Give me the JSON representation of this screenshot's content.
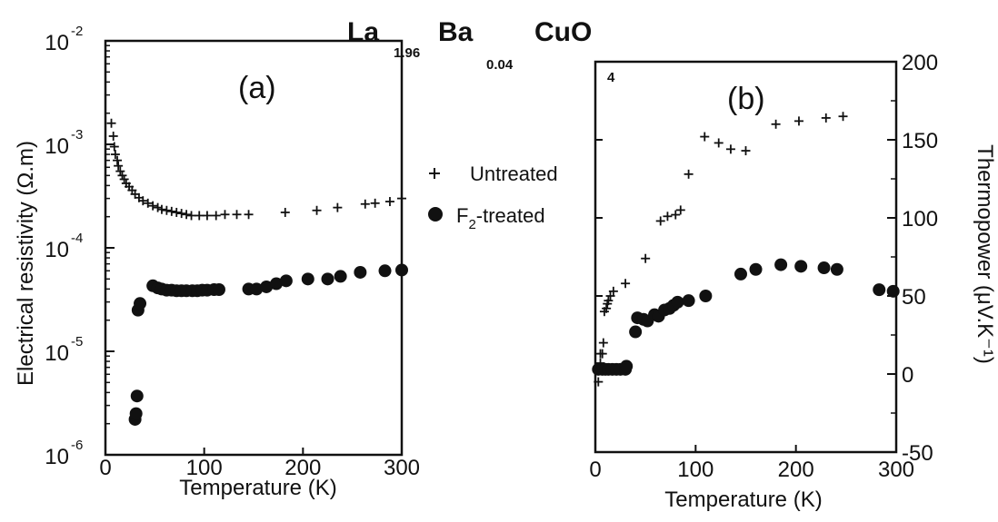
{
  "title": {
    "parts": [
      "La",
      "1.96",
      "Ba",
      "0.04",
      "CuO",
      "4"
    ]
  },
  "legend": {
    "untreated": "Untreated",
    "treated_main": "F",
    "treated_sub": "2",
    "treated_rest": "-treated"
  },
  "colors": {
    "ink": "#111111"
  },
  "chart_data": [
    {
      "type": "scatter",
      "panel_label": "(a)",
      "xlabel": "Temperature (K)",
      "ylabel": "Electrical resistivity (Ω.m)",
      "xlim": [
        0,
        300
      ],
      "ylim": [
        1e-06,
        0.01
      ],
      "log_y": true,
      "x_ticks": [
        "0",
        "100",
        "200",
        "300"
      ],
      "y_tick_bases": [
        "10",
        "10",
        "10",
        "10",
        "10"
      ],
      "y_tick_exps": [
        "-6",
        "-5",
        "-4",
        "-3",
        "-2"
      ],
      "series": [
        {
          "name": "Untreated",
          "marker": "plus",
          "points": [
            [
              6,
              0.0016
            ],
            [
              8,
              0.0012
            ],
            [
              9,
              0.00095
            ],
            [
              10,
              0.0008
            ],
            [
              12,
              0.0007
            ],
            [
              13,
              0.00062
            ],
            [
              15,
              0.00055
            ],
            [
              17,
              0.0005
            ],
            [
              19,
              0.00046
            ],
            [
              21,
              0.00042
            ],
            [
              24,
              0.00039
            ],
            [
              27,
              0.00036
            ],
            [
              30,
              0.00033
            ],
            [
              34,
              0.000305
            ],
            [
              38,
              0.000285
            ],
            [
              43,
              0.00027
            ],
            [
              48,
              0.000255
            ],
            [
              53,
              0.000245
            ],
            [
              57,
              0.000235
            ],
            [
              62,
              0.00023
            ],
            [
              67,
              0.000225
            ],
            [
              72,
              0.00022
            ],
            [
              77,
              0.000215
            ],
            [
              82,
              0.00021
            ],
            [
              87,
              0.000205
            ],
            [
              95,
              0.000205
            ],
            [
              103,
              0.000205
            ],
            [
              112,
              0.000205
            ],
            [
              121,
              0.00021
            ],
            [
              133,
              0.00021
            ],
            [
              145,
              0.00021
            ],
            [
              182,
              0.00022
            ],
            [
              214,
              0.00023
            ],
            [
              235,
              0.000245
            ],
            [
              263,
              0.000265
            ],
            [
              273,
              0.00027
            ],
            [
              288,
              0.00028
            ],
            [
              300,
              0.0003
            ]
          ]
        },
        {
          "name": "F2-treated",
          "marker": "dot",
          "points": [
            [
              30,
              2.2e-06
            ],
            [
              31,
              2.5e-06
            ],
            [
              32,
              3.7e-06
            ],
            [
              33,
              2.5e-05
            ],
            [
              35,
              2.9e-05
            ],
            [
              48,
              4.3e-05
            ],
            [
              53,
              4.1e-05
            ],
            [
              57,
              4e-05
            ],
            [
              62,
              3.9e-05
            ],
            [
              67,
              3.9e-05
            ],
            [
              72,
              3.85e-05
            ],
            [
              77,
              3.85e-05
            ],
            [
              82,
              3.85e-05
            ],
            [
              88,
              3.85e-05
            ],
            [
              93,
              3.85e-05
            ],
            [
              98,
              3.9e-05
            ],
            [
              103,
              3.9e-05
            ],
            [
              110,
              3.95e-05
            ],
            [
              115,
              3.95e-05
            ],
            [
              145,
              4e-05
            ],
            [
              153,
              4e-05
            ],
            [
              163,
              4.2e-05
            ],
            [
              173,
              4.5e-05
            ],
            [
              183,
              4.8e-05
            ],
            [
              205,
              5e-05
            ],
            [
              225,
              5e-05
            ],
            [
              238,
              5.3e-05
            ],
            [
              258,
              5.8e-05
            ],
            [
              283,
              6e-05
            ],
            [
              300,
              6.1e-05
            ]
          ]
        }
      ]
    },
    {
      "type": "scatter",
      "panel_label": "(b)",
      "xlabel": "Temperature (K)",
      "ylabel": "Thermopower (μV.K⁻¹)",
      "xlim": [
        0,
        300
      ],
      "ylim": [
        -50,
        200
      ],
      "x_ticks": [
        "0",
        "100",
        "200",
        "300"
      ],
      "y_ticks": [
        "-50",
        "0",
        "50",
        "100",
        "150",
        "200"
      ],
      "series": [
        {
          "name": "Untreated",
          "marker": "plus",
          "points": [
            [
              3,
              -5
            ],
            [
              5,
              7
            ],
            [
              5,
              13
            ],
            [
              7,
              13
            ],
            [
              8,
              20
            ],
            [
              9,
              40
            ],
            [
              11,
              42
            ],
            [
              12,
              45
            ],
            [
              13,
              47
            ],
            [
              15,
              50
            ],
            [
              18,
              53
            ],
            [
              30,
              58
            ],
            [
              50,
              74
            ],
            [
              65,
              98
            ],
            [
              72,
              101
            ],
            [
              80,
              102
            ],
            [
              85,
              105
            ],
            [
              93,
              128
            ],
            [
              109,
              152
            ],
            [
              123,
              148
            ],
            [
              135,
              144
            ],
            [
              150,
              143
            ],
            [
              180,
              160
            ],
            [
              203,
              162
            ],
            [
              230,
              164
            ],
            [
              247,
              165
            ]
          ]
        },
        {
          "name": "F2-treated",
          "marker": "dot",
          "points": [
            [
              3,
              3
            ],
            [
              7,
              3
            ],
            [
              10,
              3
            ],
            [
              13,
              3
            ],
            [
              17,
              3
            ],
            [
              21,
              3
            ],
            [
              25,
              3
            ],
            [
              30,
              3
            ],
            [
              31,
              5
            ],
            [
              40,
              27
            ],
            [
              42,
              36
            ],
            [
              48,
              35
            ],
            [
              52,
              34
            ],
            [
              59,
              38
            ],
            [
              63,
              37
            ],
            [
              69,
              41
            ],
            [
              74,
              42
            ],
            [
              78,
              44
            ],
            [
              82,
              46
            ],
            [
              93,
              47
            ],
            [
              110,
              50
            ],
            [
              145,
              64
            ],
            [
              160,
              67
            ],
            [
              185,
              70
            ],
            [
              205,
              69
            ],
            [
              228,
              68
            ],
            [
              241,
              67
            ],
            [
              283,
              54
            ],
            [
              297,
              53
            ]
          ]
        }
      ]
    }
  ]
}
